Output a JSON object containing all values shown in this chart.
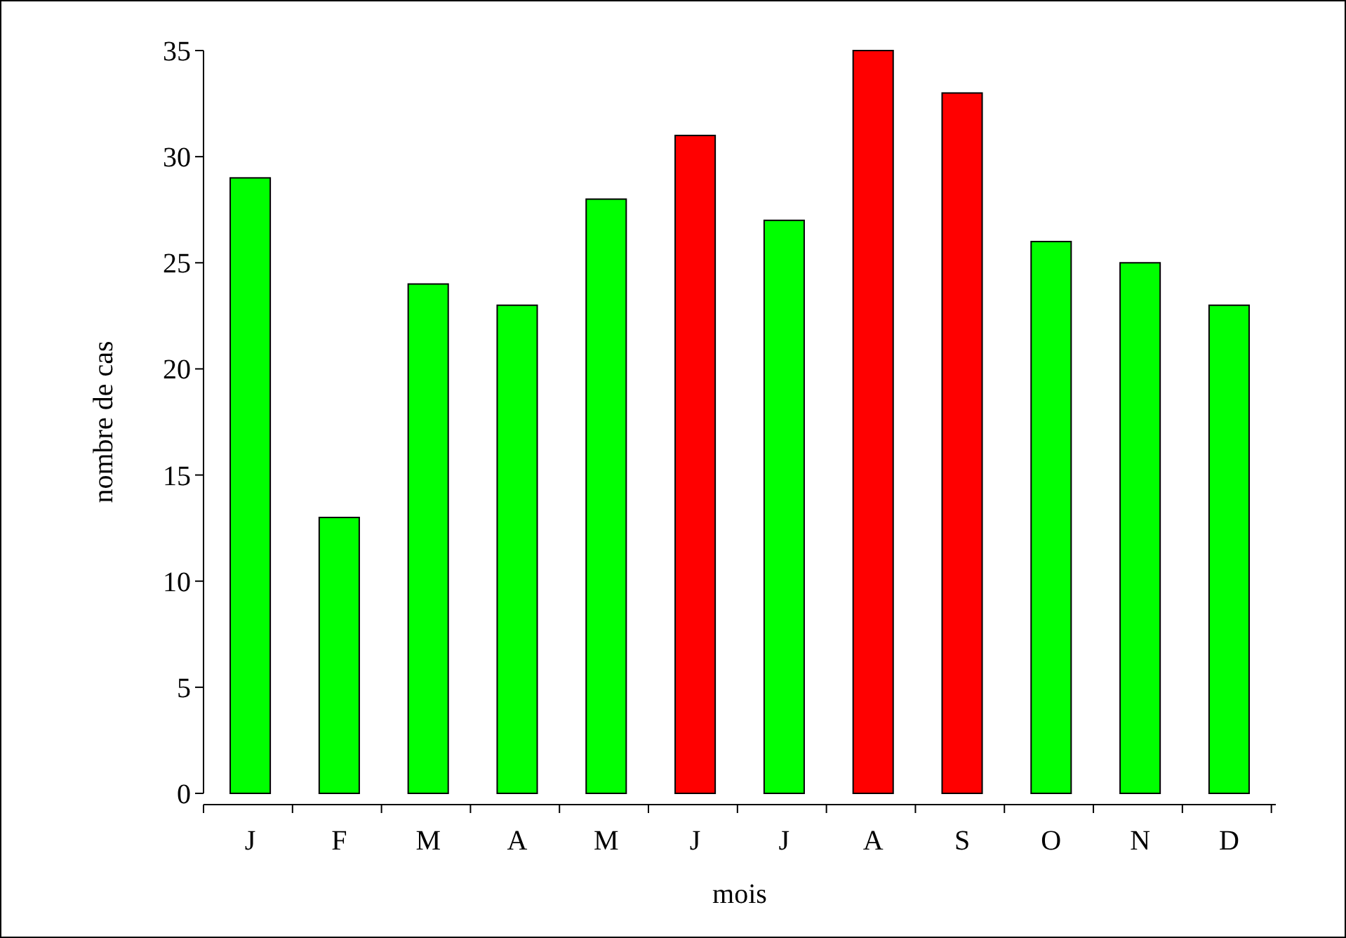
{
  "chart_data": {
    "type": "bar",
    "xlabel": "mois",
    "ylabel": "nombre de cas",
    "categories": [
      "J",
      "F",
      "M",
      "A",
      "M",
      "J",
      "J",
      "A",
      "S",
      "O",
      "N",
      "D"
    ],
    "values": [
      29,
      13,
      24,
      23,
      28,
      31,
      27,
      35,
      33,
      26,
      25,
      23
    ],
    "colors": [
      "#00ff00",
      "#00ff00",
      "#00ff00",
      "#00ff00",
      "#00ff00",
      "#ff0000",
      "#00ff00",
      "#ff0000",
      "#ff0000",
      "#00ff00",
      "#00ff00",
      "#00ff00"
    ],
    "ylim": [
      0,
      35
    ],
    "yticks": [
      0,
      5,
      10,
      15,
      20,
      25,
      30,
      35
    ],
    "grid": false
  }
}
